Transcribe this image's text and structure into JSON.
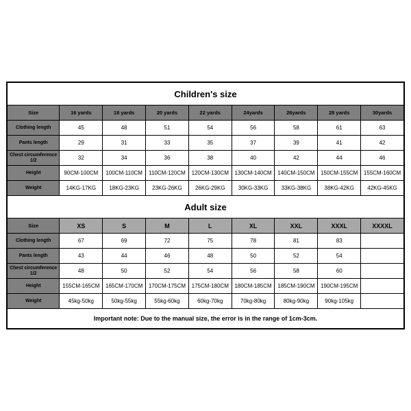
{
  "children": {
    "title": "Children's size",
    "headers": [
      "Size",
      "16 yards",
      "18 yards",
      "20 yards",
      "22 yards",
      "24yards",
      "26yards",
      "28 yards",
      "30yards"
    ],
    "rows": [
      {
        "label": "Clothing length",
        "cells": [
          "45",
          "48",
          "51",
          "54",
          "56",
          "58",
          "61",
          "63"
        ]
      },
      {
        "label": "Pants length",
        "cells": [
          "29",
          "31",
          "33",
          "35",
          "37",
          "39",
          "41",
          "42"
        ]
      },
      {
        "label": "Chest circumference 1/2",
        "cells": [
          "32",
          "34",
          "36",
          "38",
          "40",
          "42",
          "44",
          "46"
        ]
      },
      {
        "label": "Height",
        "cells": [
          "90CM-100CM",
          "100CM-110CM",
          "110CM-120CM",
          "120CM-130CM",
          "130CM-140CM",
          "140CM-150CM",
          "150CM-155CM",
          "155CM-160CM"
        ]
      },
      {
        "label": "Weight",
        "cells": [
          "14KG-17KG",
          "18KG-23KG",
          "23KG-26KG",
          "26KG-29KG",
          "30KG-33KG",
          "33KG-38KG",
          "38KG-42KG",
          "42KG-45KG"
        ]
      }
    ]
  },
  "adult": {
    "title": "Adult size",
    "headers": [
      "Size",
      "XS",
      "S",
      "M",
      "L",
      "XL",
      "XXL",
      "XXXL",
      "XXXXL"
    ],
    "rows": [
      {
        "label": "Clothing length",
        "cells": [
          "67",
          "69",
          "72",
          "75",
          "78",
          "81",
          "83",
          ""
        ]
      },
      {
        "label": "Pants length",
        "cells": [
          "43",
          "44",
          "46",
          "48",
          "50",
          "52",
          "54",
          ""
        ]
      },
      {
        "label": "Chest circumference 1/2",
        "cells": [
          "48",
          "50",
          "52",
          "54",
          "56",
          "58",
          "60",
          ""
        ]
      },
      {
        "label": "Height",
        "cells": [
          "155CM-165CM",
          "165CM-170CM",
          "170CM-175CM",
          "175CM-180CM",
          "180CM-185CM",
          "185CM-190CM",
          "190CM-195CM",
          ""
        ]
      },
      {
        "label": "Weight",
        "cells": [
          "45kg-50kg",
          "50kg-55kg",
          "55kg-60kg",
          "60kg-70kg",
          "70kg-80kg",
          "80kg-90kg",
          "90kg-105kg",
          ""
        ]
      }
    ]
  },
  "note": "Important note: Due to the manual size, the error is in the range of 1cm-3cm."
}
